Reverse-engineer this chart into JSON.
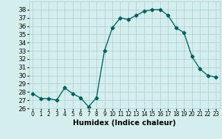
{
  "x": [
    0,
    1,
    2,
    3,
    4,
    5,
    6,
    7,
    8,
    9,
    10,
    11,
    12,
    13,
    14,
    15,
    16,
    17,
    18,
    19,
    20,
    21,
    22,
    23
  ],
  "y": [
    27.8,
    27.2,
    27.2,
    27.0,
    28.5,
    27.8,
    27.3,
    26.2,
    27.3,
    33.0,
    35.8,
    37.0,
    36.8,
    37.3,
    37.8,
    38.0,
    38.0,
    37.3,
    35.8,
    35.2,
    32.3,
    30.8,
    30.0,
    29.8
  ],
  "line_color": "#006060",
  "marker": "D",
  "marker_size": 2.5,
  "background_color": "#d4eeee",
  "grid_color": "#aacccc",
  "xlabel": "Humidex (Indice chaleur)",
  "xlim": [
    -0.5,
    23.5
  ],
  "ylim": [
    26,
    39
  ],
  "yticks": [
    26,
    27,
    28,
    29,
    30,
    31,
    32,
    33,
    34,
    35,
    36,
    37,
    38
  ],
  "xticks": [
    0,
    1,
    2,
    3,
    4,
    5,
    6,
    7,
    8,
    9,
    10,
    11,
    12,
    13,
    14,
    15,
    16,
    17,
    18,
    19,
    20,
    21,
    22,
    23
  ],
  "xlabel_fontsize": 7.5,
  "ytick_fontsize": 6.5,
  "xtick_fontsize": 5.5,
  "line_width": 1.0
}
